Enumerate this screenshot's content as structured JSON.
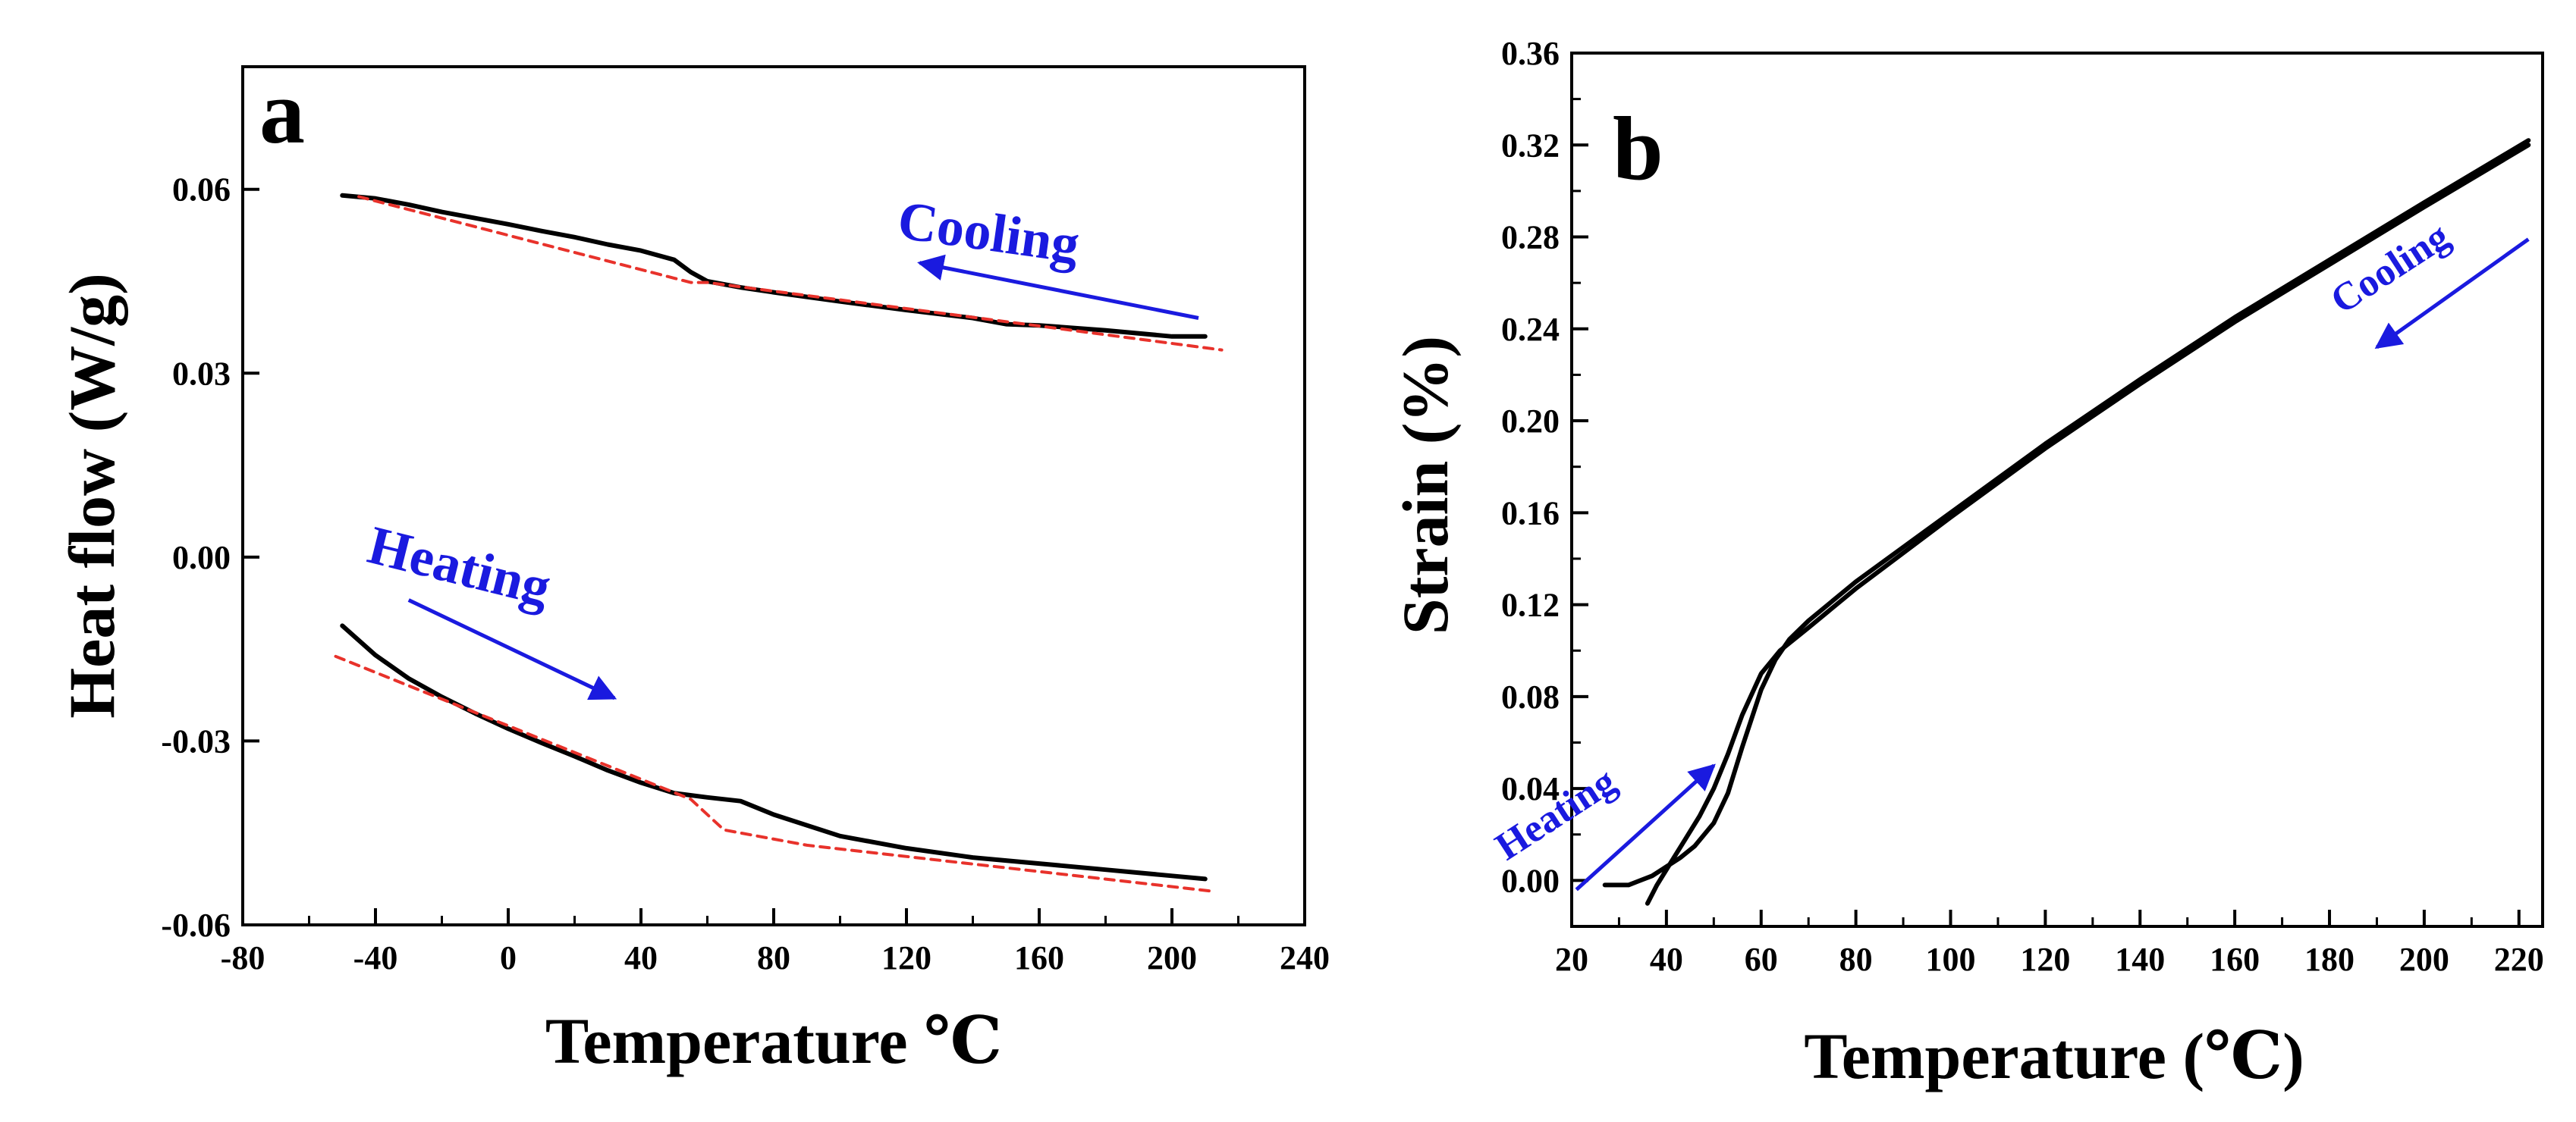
{
  "colors": {
    "data": "#000000",
    "baseline": "#e8322b",
    "annotation": "#1a1adf"
  },
  "chart_data": [
    {
      "type": "line",
      "panel": "a",
      "xlabel": "Temperature  ℃",
      "ylabel": "Heat flow (W/g)",
      "xlim": [
        -80,
        240
      ],
      "ylim": [
        -0.06,
        0.08
      ],
      "xticks": [
        -80,
        -40,
        0,
        40,
        80,
        120,
        160,
        200,
        240
      ],
      "yticks": [
        -0.06,
        -0.03,
        0.0,
        0.03,
        0.06
      ],
      "xtick_labels": [
        "-80",
        "-40",
        "0",
        "40",
        "80",
        "120",
        "160",
        "200",
        "240"
      ],
      "ytick_labels": [
        "-0.06",
        "-0.03",
        "0.00",
        "0.03",
        "0.06"
      ],
      "grid": false,
      "annotations": [
        {
          "text": "Cooling",
          "arrow_from": [
            208,
            0.039
          ],
          "arrow_to": [
            124,
            0.048
          ]
        },
        {
          "text": "Heating",
          "arrow_from": [
            -30,
            -0.007
          ],
          "arrow_to": [
            32,
            -0.023
          ]
        }
      ],
      "series": [
        {
          "name": "Cooling",
          "color": "#000000",
          "x": [
            -50,
            -40,
            -30,
            -20,
            -10,
            0,
            10,
            20,
            30,
            40,
            50,
            55,
            60,
            70,
            80,
            100,
            120,
            140,
            150,
            160,
            180,
            200,
            210
          ],
          "y": [
            0.059,
            0.0585,
            0.0575,
            0.0563,
            0.0553,
            0.0543,
            0.0532,
            0.0522,
            0.051,
            0.05,
            0.0485,
            0.0465,
            0.045,
            0.044,
            0.0432,
            0.0417,
            0.0403,
            0.039,
            0.038,
            0.0378,
            0.037,
            0.036,
            0.036
          ]
        },
        {
          "name": "Cooling baseline",
          "color": "#e8322b",
          "dashed": true,
          "x": [
            -45,
            55,
            60,
            215
          ],
          "y": [
            0.0588,
            0.0448,
            0.0448,
            0.0338
          ]
        },
        {
          "name": "Heating",
          "color": "#000000",
          "x": [
            -50,
            -40,
            -30,
            -20,
            -10,
            0,
            10,
            20,
            30,
            40,
            50,
            60,
            70,
            80,
            100,
            120,
            140,
            160,
            180,
            200,
            210
          ],
          "y": [
            -0.0112,
            -0.016,
            -0.0198,
            -0.0228,
            -0.0255,
            -0.028,
            -0.0303,
            -0.0325,
            -0.0348,
            -0.0368,
            -0.0385,
            -0.0392,
            -0.0398,
            -0.042,
            -0.0455,
            -0.0475,
            -0.049,
            -0.05,
            -0.051,
            -0.052,
            -0.0525
          ]
        },
        {
          "name": "Heating baseline",
          "color": "#e8322b",
          "dashed": true,
          "x": [
            -52,
            55,
            65,
            90,
            212
          ],
          "y": [
            -0.0162,
            -0.0395,
            -0.0445,
            -0.047,
            -0.0545
          ]
        }
      ]
    },
    {
      "type": "line",
      "panel": "b",
      "xlabel": "Temperature (℃)",
      "ylabel": "Strain (%)",
      "xlim": [
        20,
        225
      ],
      "ylim": [
        -0.02,
        0.36
      ],
      "xticks": [
        20,
        40,
        60,
        80,
        100,
        120,
        140,
        160,
        180,
        200,
        220
      ],
      "yticks": [
        0.0,
        0.04,
        0.08,
        0.12,
        0.16,
        0.2,
        0.24,
        0.28,
        0.32,
        0.36
      ],
      "xtick_labels": [
        "20",
        "40",
        "60",
        "80",
        "100",
        "120",
        "140",
        "160",
        "180",
        "200",
        "220"
      ],
      "ytick_labels": [
        "0.00",
        "0.04",
        "0.08",
        "0.12",
        "0.16",
        "0.20",
        "0.24",
        "0.28",
        "0.32",
        "0.36"
      ],
      "grid": false,
      "annotations": [
        {
          "text": "Cooling",
          "arrow_from": [
            222,
            0.279
          ],
          "arrow_to": [
            190,
            0.232
          ]
        },
        {
          "text": "Heating",
          "arrow_from": [
            21,
            -0.004
          ],
          "arrow_to": [
            50,
            0.05
          ]
        }
      ],
      "series": [
        {
          "name": "Heating",
          "color": "#000000",
          "x": [
            27,
            32,
            37,
            40,
            43,
            46,
            50,
            53,
            56,
            60,
            63,
            66,
            70,
            80,
            100,
            120,
            140,
            160,
            180,
            200,
            222
          ],
          "y": [
            -0.002,
            -0.002,
            0.002,
            0.006,
            0.01,
            0.015,
            0.025,
            0.038,
            0.058,
            0.083,
            0.096,
            0.105,
            0.113,
            0.13,
            0.16,
            0.19,
            0.218,
            0.245,
            0.27,
            0.295,
            0.322
          ]
        },
        {
          "name": "Cooling",
          "color": "#000000",
          "x": [
            222,
            200,
            180,
            160,
            140,
            120,
            100,
            80,
            70,
            64,
            60,
            56,
            53,
            50,
            47,
            44,
            41,
            38,
            36
          ],
          "y": [
            0.32,
            0.293,
            0.268,
            0.243,
            0.216,
            0.188,
            0.158,
            0.127,
            0.11,
            0.1,
            0.09,
            0.072,
            0.055,
            0.04,
            0.028,
            0.018,
            0.008,
            -0.002,
            -0.01
          ]
        }
      ]
    }
  ]
}
